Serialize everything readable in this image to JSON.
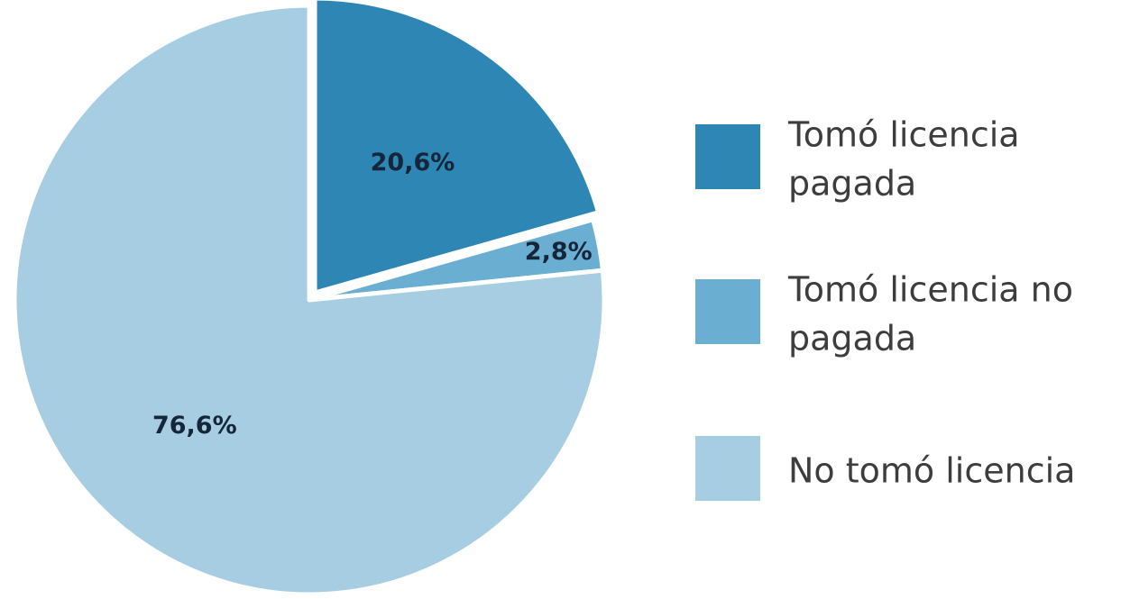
{
  "chart_data": {
    "type": "pie",
    "title": "",
    "legend_position": "right",
    "start_angle_deg": 0,
    "direction": "clockwise",
    "slices": [
      {
        "label": "Tomó licencia pagada",
        "value": 20.6,
        "value_label": "20,6%",
        "color": "#2e86b4",
        "exploded": true
      },
      {
        "label": "Tomó licencia no pagada",
        "value": 2.8,
        "value_label": "2,8%",
        "color": "#6aaed2",
        "exploded": false
      },
      {
        "label": "No tomó licencia",
        "value": 76.6,
        "value_label": "76,6%",
        "color": "#a6cde1",
        "exploded": false
      }
    ],
    "legend": [
      {
        "lines": [
          "Tomó licencia",
          "pagada"
        ],
        "color": "#2e86b4"
      },
      {
        "lines": [
          "Tomó licencia no",
          "pagada"
        ],
        "color": "#6aaed2"
      },
      {
        "lines": [
          "No tomó licencia"
        ],
        "color": "#a6cde1"
      }
    ]
  }
}
